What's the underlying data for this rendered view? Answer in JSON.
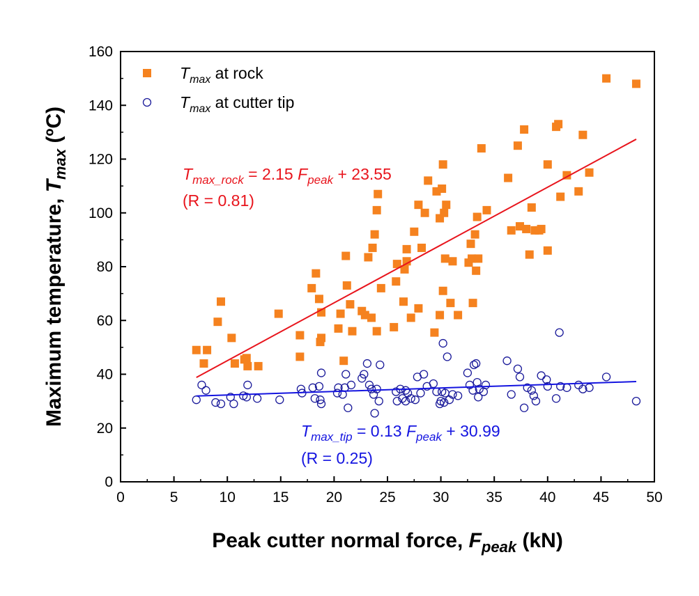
{
  "chart_data": {
    "type": "scatter",
    "xlabel": "Peak cutter normal force, ",
    "xlabel_symbol": "F",
    "xlabel_sub": "peak",
    "xlabel_unit": " (kN)",
    "ylabel": "Maximum temperature, ",
    "ylabel_symbol": "T",
    "ylabel_sub": "max",
    "ylabel_unit": " (ºC)",
    "xlim": [
      0,
      50
    ],
    "ylim": [
      0,
      160
    ],
    "xticks": [
      0,
      5,
      10,
      15,
      20,
      25,
      30,
      35,
      40,
      45,
      50
    ],
    "yticks": [
      0,
      20,
      40,
      60,
      80,
      100,
      120,
      140,
      160
    ],
    "legend_position": "top-left",
    "series": [
      {
        "name": "T_max at rock",
        "legend_symbol": "T",
        "legend_sub": "max",
        "legend_text": " at rock",
        "marker": "filled-square",
        "color": "#F5821F",
        "points": [
          [
            7.1,
            49
          ],
          [
            7.8,
            44
          ],
          [
            8.1,
            49
          ],
          [
            9.1,
            59.5
          ],
          [
            9.4,
            67
          ],
          [
            10.4,
            53.5
          ],
          [
            10.7,
            44
          ],
          [
            11.6,
            45.5
          ],
          [
            11.8,
            46
          ],
          [
            11.9,
            43
          ],
          [
            12.9,
            43
          ],
          [
            14.8,
            62.5
          ],
          [
            16.8,
            54.5
          ],
          [
            16.8,
            46.5
          ],
          [
            17.9,
            72
          ],
          [
            18.3,
            77.5
          ],
          [
            18.6,
            68
          ],
          [
            18.7,
            52
          ],
          [
            18.8,
            53.5
          ],
          [
            18.8,
            63
          ],
          [
            20.4,
            57
          ],
          [
            20.6,
            62.5
          ],
          [
            20.9,
            45
          ],
          [
            21.1,
            84
          ],
          [
            21.2,
            73
          ],
          [
            21.5,
            66
          ],
          [
            21.7,
            56
          ],
          [
            22.6,
            63.5
          ],
          [
            22.9,
            62
          ],
          [
            23.2,
            83.5
          ],
          [
            23.5,
            61
          ],
          [
            23.6,
            87
          ],
          [
            23.8,
            92
          ],
          [
            24,
            101
          ],
          [
            24.1,
            107
          ],
          [
            24,
            56
          ],
          [
            24.4,
            72
          ],
          [
            25.6,
            57.5
          ],
          [
            25.8,
            74.5
          ],
          [
            25.9,
            81
          ],
          [
            26.5,
            67
          ],
          [
            26.6,
            79
          ],
          [
            26.8,
            86.5
          ],
          [
            26.8,
            82
          ],
          [
            27.2,
            61
          ],
          [
            27.5,
            93
          ],
          [
            27.9,
            103
          ],
          [
            27.9,
            64.5
          ],
          [
            28.2,
            87
          ],
          [
            28.5,
            100
          ],
          [
            28.8,
            112
          ],
          [
            29.4,
            55.5
          ],
          [
            29.6,
            108
          ],
          [
            29.9,
            98
          ],
          [
            29.9,
            62
          ],
          [
            30.1,
            109
          ],
          [
            30.2,
            118
          ],
          [
            30.3,
            100
          ],
          [
            30.2,
            71
          ],
          [
            30.4,
            83
          ],
          [
            30.5,
            103
          ],
          [
            30.9,
            66.5
          ],
          [
            31.1,
            82
          ],
          [
            31.6,
            62
          ],
          [
            32.6,
            81.5
          ],
          [
            32.8,
            88.5
          ],
          [
            32.9,
            83
          ],
          [
            33,
            66.5
          ],
          [
            33.2,
            92
          ],
          [
            33.3,
            78.5
          ],
          [
            33.5,
            83
          ],
          [
            33.4,
            98.5
          ],
          [
            33.8,
            124
          ],
          [
            34.3,
            101
          ],
          [
            36.3,
            113
          ],
          [
            36.6,
            93.5
          ],
          [
            37.2,
            125
          ],
          [
            37.4,
            95
          ],
          [
            37.8,
            131
          ],
          [
            38,
            94
          ],
          [
            38.3,
            84.5
          ],
          [
            38.5,
            102
          ],
          [
            38.8,
            93.5
          ],
          [
            39.2,
            93.5
          ],
          [
            39.4,
            94
          ],
          [
            40,
            86
          ],
          [
            40,
            118
          ],
          [
            40.8,
            132
          ],
          [
            41,
            133
          ],
          [
            41.2,
            106
          ],
          [
            41.8,
            114
          ],
          [
            42.9,
            108
          ],
          [
            43.3,
            129
          ],
          [
            43.9,
            115
          ],
          [
            45.5,
            150
          ],
          [
            48.3,
            148
          ]
        ]
      },
      {
        "name": "T_max at cutter tip",
        "legend_symbol": "T",
        "legend_sub": "max",
        "legend_text": " at cutter tip",
        "marker": "open-circle",
        "color": "#1A1A9A",
        "points": [
          [
            7.1,
            30.5
          ],
          [
            7.6,
            36
          ],
          [
            8,
            34
          ],
          [
            8.9,
            29.5
          ],
          [
            9.4,
            29
          ],
          [
            10.3,
            31.5
          ],
          [
            10.6,
            29
          ],
          [
            11.5,
            32
          ],
          [
            11.8,
            31.5
          ],
          [
            11.9,
            36
          ],
          [
            12.8,
            31
          ],
          [
            14.9,
            30.5
          ],
          [
            16.9,
            34.5
          ],
          [
            17,
            33
          ],
          [
            18,
            35
          ],
          [
            18.2,
            31
          ],
          [
            18.6,
            35.5
          ],
          [
            18.7,
            30.5
          ],
          [
            18.8,
            29
          ],
          [
            18.8,
            40.5
          ],
          [
            20.3,
            33
          ],
          [
            20.4,
            35
          ],
          [
            20.8,
            32.5
          ],
          [
            21,
            35
          ],
          [
            21.1,
            40
          ],
          [
            21.3,
            27.5
          ],
          [
            21.6,
            36
          ],
          [
            22.6,
            38.5
          ],
          [
            22.8,
            40
          ],
          [
            23.1,
            44
          ],
          [
            23.3,
            36
          ],
          [
            23.5,
            34.5
          ],
          [
            23.7,
            32.5
          ],
          [
            23.8,
            25.5
          ],
          [
            24,
            34.5
          ],
          [
            24.2,
            30
          ],
          [
            24.3,
            43.5
          ],
          [
            25.8,
            33.5
          ],
          [
            25.9,
            30
          ],
          [
            26.2,
            34.5
          ],
          [
            26.4,
            31
          ],
          [
            26.7,
            34
          ],
          [
            26.7,
            30
          ],
          [
            26.9,
            33
          ],
          [
            27.2,
            31
          ],
          [
            27.6,
            30.5
          ],
          [
            27.8,
            39
          ],
          [
            28.1,
            33
          ],
          [
            28.4,
            40
          ],
          [
            28.7,
            35.5
          ],
          [
            29.3,
            36.5
          ],
          [
            29.6,
            33.5
          ],
          [
            29.9,
            29
          ],
          [
            30,
            30
          ],
          [
            30.1,
            33.5
          ],
          [
            30.2,
            51.5
          ],
          [
            30.3,
            29.5
          ],
          [
            30.4,
            33
          ],
          [
            30.6,
            46.5
          ],
          [
            30.8,
            30.5
          ],
          [
            31.1,
            32.5
          ],
          [
            31.6,
            32
          ],
          [
            32.5,
            40.5
          ],
          [
            32.7,
            36
          ],
          [
            33,
            34
          ],
          [
            33.1,
            43.5
          ],
          [
            33.3,
            44
          ],
          [
            33.4,
            37
          ],
          [
            33.5,
            31.5
          ],
          [
            33.6,
            34.5
          ],
          [
            34,
            33.5
          ],
          [
            34.2,
            36
          ],
          [
            36.2,
            45
          ],
          [
            36.6,
            32.5
          ],
          [
            37.2,
            42
          ],
          [
            37.4,
            39
          ],
          [
            37.8,
            27.5
          ],
          [
            38.1,
            35
          ],
          [
            38.5,
            34
          ],
          [
            38.7,
            32
          ],
          [
            38.9,
            30
          ],
          [
            39.4,
            39.5
          ],
          [
            39.9,
            38
          ],
          [
            40,
            35.5
          ],
          [
            40.8,
            31
          ],
          [
            41.1,
            55.5
          ],
          [
            41.2,
            35.5
          ],
          [
            41.8,
            35
          ],
          [
            42.9,
            36
          ],
          [
            43.3,
            34.5
          ],
          [
            43.9,
            35
          ],
          [
            45.5,
            39
          ],
          [
            48.3,
            30
          ]
        ]
      }
    ],
    "fits": [
      {
        "name": "rock fit",
        "color": "#E8141C",
        "slope": 2.15,
        "intercept": 23.55,
        "x_range": [
          7.1,
          48.3
        ],
        "eq_symbol": "T",
        "eq_sub": "max_rock",
        "eq_mid": " = 2.15 ",
        "eq_symbol2": "F",
        "eq_sub2": "peak",
        "eq_end": " + 23.55",
        "r_text": "(R = 0.81)"
      },
      {
        "name": "tip fit",
        "color": "#1414E0",
        "slope": 0.13,
        "intercept": 30.99,
        "x_range": [
          7.1,
          48.3
        ],
        "eq_symbol": "T",
        "eq_sub": "max_tip",
        "eq_mid": " = 0.13 ",
        "eq_symbol2": "F",
        "eq_sub2": "peak",
        "eq_end": " + 30.99",
        "r_text": "(R = 0.25)"
      }
    ]
  }
}
